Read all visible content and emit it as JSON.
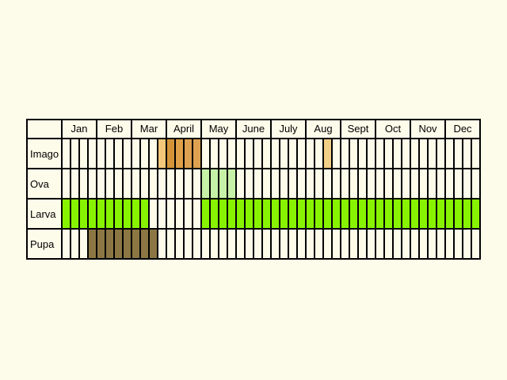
{
  "chart_data": {
    "type": "table",
    "months": [
      "Jan",
      "Feb",
      "Mar",
      "April",
      "May",
      "June",
      "July",
      "Aug",
      "Sept",
      "Oct",
      "Nov",
      "Dec"
    ],
    "rows": [
      {
        "label": "Imago",
        "spans": [
          {
            "from": 2.75,
            "to": 3.5,
            "color": "#f2c77a"
          },
          {
            "from": 3.0,
            "to": 3.25,
            "color": "#d39439"
          },
          {
            "from": 3.25,
            "to": 3.5,
            "color": "#de9f47"
          },
          {
            "from": 3.5,
            "to": 4.0,
            "color": "#dea150"
          },
          {
            "from": 7.5,
            "to": 7.75,
            "color": "#f2cf86"
          }
        ]
      },
      {
        "label": "Ova",
        "spans": [
          {
            "from": 4.0,
            "to": 5.0,
            "color": "#c6f2a8"
          }
        ]
      },
      {
        "label": "Larva",
        "spans": [
          {
            "from": 0.0,
            "to": 2.5,
            "color": "#88f300"
          },
          {
            "from": 4.0,
            "to": 12.0,
            "color": "#88f300"
          }
        ]
      },
      {
        "label": "Pupa",
        "spans": [
          {
            "from": 0.75,
            "to": 2.75,
            "color": "#8c7744"
          }
        ]
      }
    ]
  }
}
